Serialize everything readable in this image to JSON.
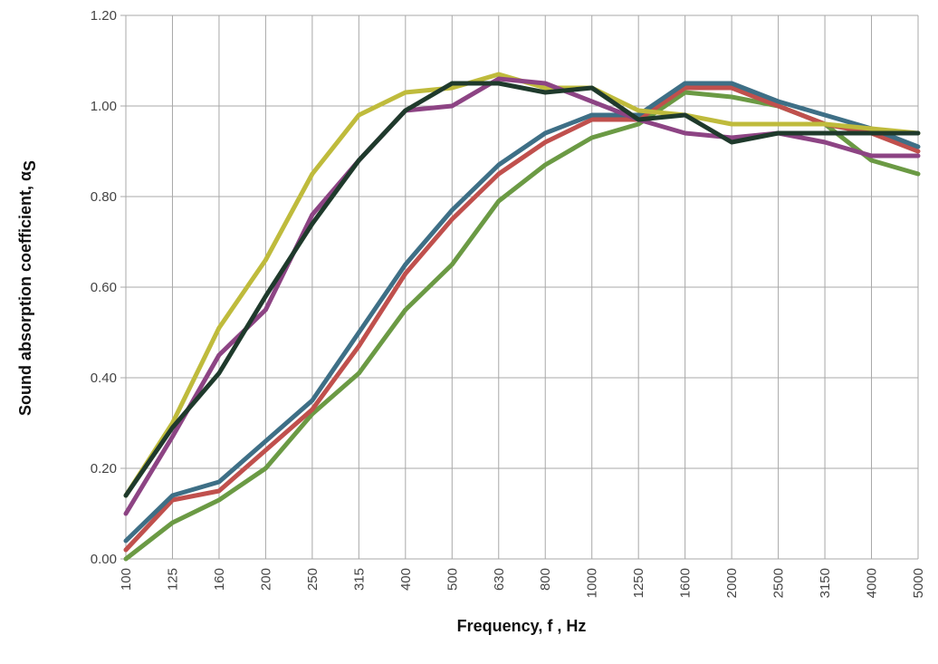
{
  "chart_data": {
    "type": "line",
    "title": "",
    "xlabel": "Frequency, f , Hz",
    "ylabel": "Sound absorption coefficient, αS",
    "ylabel_main": "Sound absorption coefficient, α",
    "ylabel_subscript": "S",
    "ylim": [
      0,
      1.2
    ],
    "yticks": [
      "0.00",
      "0.20",
      "0.40",
      "0.60",
      "0.80",
      "1.00",
      "1.20"
    ],
    "x": [
      "100",
      "125",
      "160",
      "200",
      "250",
      "315",
      "400",
      "500",
      "630",
      "800",
      "1000",
      "1250",
      "1600",
      "2000",
      "2500",
      "3150",
      "4000",
      "5000"
    ],
    "grid": true,
    "legend": "none",
    "series": [
      {
        "color": "#6b9a44",
        "values": [
          0.0,
          0.08,
          0.13,
          0.2,
          0.32,
          0.41,
          0.55,
          0.65,
          0.79,
          0.87,
          0.93,
          0.96,
          1.03,
          1.02,
          1.0,
          0.96,
          0.88,
          0.85
        ]
      },
      {
        "color": "#c0504d",
        "values": [
          0.02,
          0.13,
          0.15,
          0.24,
          0.33,
          0.47,
          0.63,
          0.75,
          0.85,
          0.92,
          0.97,
          0.97,
          1.04,
          1.04,
          1.0,
          0.96,
          0.94,
          0.9
        ]
      },
      {
        "color": "#3e6f86",
        "values": [
          0.04,
          0.14,
          0.17,
          0.26,
          0.35,
          0.5,
          0.65,
          0.77,
          0.87,
          0.94,
          0.98,
          0.98,
          1.05,
          1.05,
          1.01,
          0.98,
          0.95,
          0.91
        ]
      },
      {
        "color": "#bfbb3c",
        "values": [
          0.14,
          0.3,
          0.51,
          0.66,
          0.85,
          0.98,
          1.03,
          1.04,
          1.07,
          1.04,
          1.04,
          0.99,
          0.98,
          0.96,
          0.96,
          0.96,
          0.95,
          0.94
        ]
      },
      {
        "color": "#8d4484",
        "values": [
          0.1,
          0.27,
          0.45,
          0.55,
          0.76,
          0.88,
          0.99,
          1.0,
          1.06,
          1.05,
          1.01,
          0.97,
          0.94,
          0.93,
          0.94,
          0.92,
          0.89,
          0.89
        ]
      },
      {
        "color": "#1f3a2c",
        "values": [
          0.14,
          0.29,
          0.41,
          0.58,
          0.74,
          0.88,
          0.99,
          1.05,
          1.05,
          1.03,
          1.04,
          0.97,
          0.98,
          0.92,
          0.94,
          0.94,
          0.94,
          0.94
        ]
      }
    ]
  }
}
